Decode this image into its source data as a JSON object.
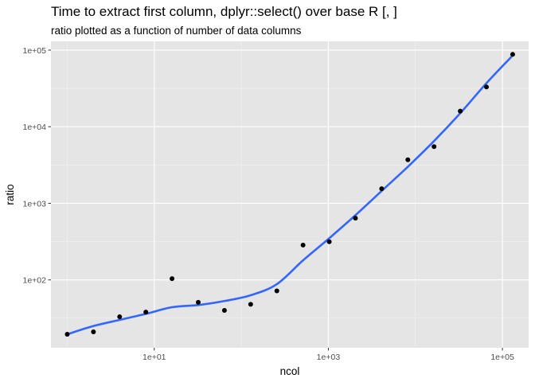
{
  "chart_data": {
    "type": "scatter",
    "title": "Time to extract first column, dplyr::select() over base R [, ]",
    "subtitle": "ratio plotted as a function of number of data columns",
    "xlabel": "ncol",
    "ylabel": "ratio",
    "x_scale": "log10",
    "y_scale": "log10",
    "xlim": [
      0.65,
      200000
    ],
    "ylim": [
      13,
      130000
    ],
    "x_ticks": [
      10,
      1000,
      100000
    ],
    "x_tick_labels": [
      "1e+01",
      "1e+03",
      "1e+05"
    ],
    "y_ticks": [
      100,
      1000,
      10000,
      100000
    ],
    "y_tick_labels": [
      "1e+02",
      "1e+03",
      "1e+04",
      "1e+05"
    ],
    "grid": true,
    "panel_background": "#e5e5e5",
    "point_color": "#000000",
    "smooth_color": "#3366ff",
    "points": [
      {
        "x": 1,
        "y": 19.5
      },
      {
        "x": 2,
        "y": 21
      },
      {
        "x": 4,
        "y": 33
      },
      {
        "x": 8,
        "y": 38
      },
      {
        "x": 16,
        "y": 104
      },
      {
        "x": 32,
        "y": 51
      },
      {
        "x": 64,
        "y": 40
      },
      {
        "x": 128,
        "y": 48
      },
      {
        "x": 256,
        "y": 72
      },
      {
        "x": 512,
        "y": 285
      },
      {
        "x": 1024,
        "y": 315
      },
      {
        "x": 2048,
        "y": 640
      },
      {
        "x": 4096,
        "y": 1550
      },
      {
        "x": 8192,
        "y": 3700
      },
      {
        "x": 16384,
        "y": 5500
      },
      {
        "x": 32768,
        "y": 16000
      },
      {
        "x": 65536,
        "y": 33000
      },
      {
        "x": 131072,
        "y": 88000
      }
    ],
    "smooth_line": [
      {
        "x": 1,
        "y": 19.5
      },
      {
        "x": 2,
        "y": 25
      },
      {
        "x": 4,
        "y": 30
      },
      {
        "x": 8,
        "y": 36
      },
      {
        "x": 16,
        "y": 44
      },
      {
        "x": 32,
        "y": 47
      },
      {
        "x": 64,
        "y": 53
      },
      {
        "x": 128,
        "y": 63
      },
      {
        "x": 256,
        "y": 88
      },
      {
        "x": 512,
        "y": 180
      },
      {
        "x": 1024,
        "y": 350
      },
      {
        "x": 2048,
        "y": 700
      },
      {
        "x": 4096,
        "y": 1450
      },
      {
        "x": 8192,
        "y": 3000
      },
      {
        "x": 16384,
        "y": 6500
      },
      {
        "x": 32768,
        "y": 15000
      },
      {
        "x": 65536,
        "y": 37000
      },
      {
        "x": 131072,
        "y": 85000
      }
    ]
  }
}
